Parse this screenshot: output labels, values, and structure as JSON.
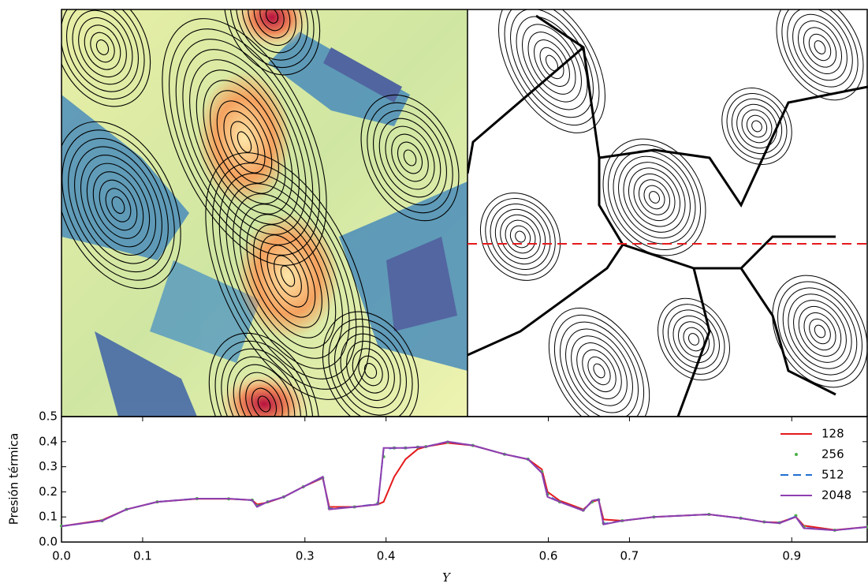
{
  "chart_data": {
    "type": "line",
    "ylabel": "Presión térmica",
    "xlabel": "Y",
    "x": [
      0,
      0.05,
      0.08,
      0.118,
      0.167,
      0.206,
      0.235,
      0.241,
      0.254,
      0.274,
      0.298,
      0.322,
      0.33,
      0.361,
      0.39,
      0.397,
      0.41,
      0.424,
      0.439,
      0.449,
      0.476,
      0.507,
      0.546,
      0.575,
      0.592,
      0.599,
      0.614,
      0.643,
      0.654,
      0.662,
      0.668,
      0.691,
      0.73,
      0.798,
      0.837,
      0.866,
      0.885,
      0.905,
      0.915,
      0.953,
      0.993
    ],
    "series": [
      {
        "name": "128",
        "color": "#e41a1c",
        "style": "solid",
        "values": [
          0.063,
          0.087,
          0.13,
          0.16,
          0.172,
          0.172,
          0.167,
          0.15,
          0.158,
          0.18,
          0.22,
          0.255,
          0.14,
          0.14,
          0.15,
          0.16,
          0.26,
          0.33,
          0.37,
          0.38,
          0.395,
          0.385,
          0.35,
          0.33,
          0.29,
          0.2,
          0.165,
          0.13,
          0.16,
          0.168,
          0.09,
          0.085,
          0.1,
          0.11,
          0.095,
          0.08,
          0.078,
          0.1,
          0.065,
          0.048,
          0.06
        ]
      },
      {
        "name": "256",
        "color": "#4daf4a",
        "style": "dots",
        "values": [
          0.064,
          0.085,
          0.13,
          0.16,
          0.173,
          0.172,
          0.167,
          0.145,
          0.16,
          0.18,
          0.22,
          0.255,
          0.135,
          0.14,
          0.155,
          0.34,
          0.375,
          0.375,
          0.378,
          0.38,
          0.398,
          0.385,
          0.35,
          0.33,
          0.28,
          0.19,
          0.16,
          0.127,
          0.16,
          0.168,
          0.075,
          0.085,
          0.1,
          0.11,
          0.095,
          0.08,
          0.077,
          0.105,
          0.06,
          0.047,
          0.06
        ]
      },
      {
        "name": "512",
        "color": "#1f6fd0",
        "style": "dashed",
        "values": [
          0.063,
          0.085,
          0.13,
          0.16,
          0.173,
          0.173,
          0.167,
          0.142,
          0.16,
          0.18,
          0.22,
          0.258,
          0.132,
          0.14,
          0.152,
          0.37,
          0.375,
          0.375,
          0.378,
          0.38,
          0.4,
          0.385,
          0.35,
          0.33,
          0.277,
          0.185,
          0.16,
          0.126,
          0.163,
          0.17,
          0.072,
          0.085,
          0.1,
          0.11,
          0.095,
          0.08,
          0.076,
          0.102,
          0.057,
          0.047,
          0.06
        ]
      },
      {
        "name": "2048",
        "color": "#8e3fb0",
        "style": "solid",
        "values": [
          0.063,
          0.085,
          0.13,
          0.16,
          0.173,
          0.173,
          0.167,
          0.14,
          0.16,
          0.18,
          0.22,
          0.26,
          0.13,
          0.14,
          0.15,
          0.375,
          0.375,
          0.375,
          0.378,
          0.38,
          0.4,
          0.385,
          0.35,
          0.33,
          0.275,
          0.18,
          0.16,
          0.125,
          0.165,
          0.17,
          0.07,
          0.085,
          0.1,
          0.11,
          0.095,
          0.08,
          0.075,
          0.1,
          0.055,
          0.047,
          0.06
        ]
      }
    ],
    "xlim": [
      0,
      0.993
    ],
    "xticks": [
      {
        "value": 0,
        "label": "0.0"
      },
      0.1,
      0.3,
      0.4,
      0.6,
      0.7,
      0.9
    ],
    "ylim": [
      0,
      0.5
    ],
    "yticks": [
      {
        "value": 0,
        "label": "0.0"
      },
      0.1,
      0.2,
      0.3,
      0.4,
      0.5
    ],
    "legend": "upper right"
  }
}
